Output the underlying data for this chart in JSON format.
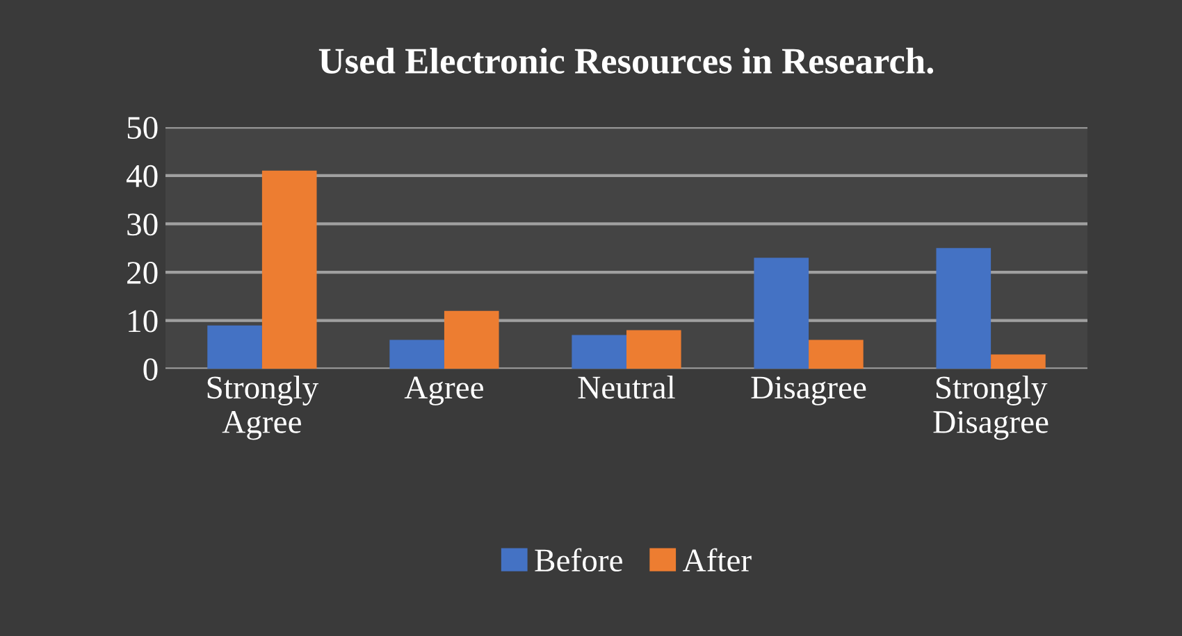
{
  "chart_data": {
    "type": "bar",
    "title": "Used Electronic Resources in Research.",
    "categories": [
      "Strongly\nAgree",
      "Agree",
      "Neutral",
      "Disagree",
      "Strongly\nDisagree"
    ],
    "series": [
      {
        "name": "Before",
        "color": "#4472c4",
        "values": [
          9,
          6,
          7,
          23,
          25
        ]
      },
      {
        "name": "After",
        "color": "#ed7d31",
        "values": [
          41,
          12,
          8,
          6,
          3
        ]
      }
    ],
    "ylim": [
      0,
      50
    ],
    "yticks": [
      0,
      10,
      20,
      30,
      40,
      50
    ],
    "grid": "y",
    "legend": "bottom"
  }
}
